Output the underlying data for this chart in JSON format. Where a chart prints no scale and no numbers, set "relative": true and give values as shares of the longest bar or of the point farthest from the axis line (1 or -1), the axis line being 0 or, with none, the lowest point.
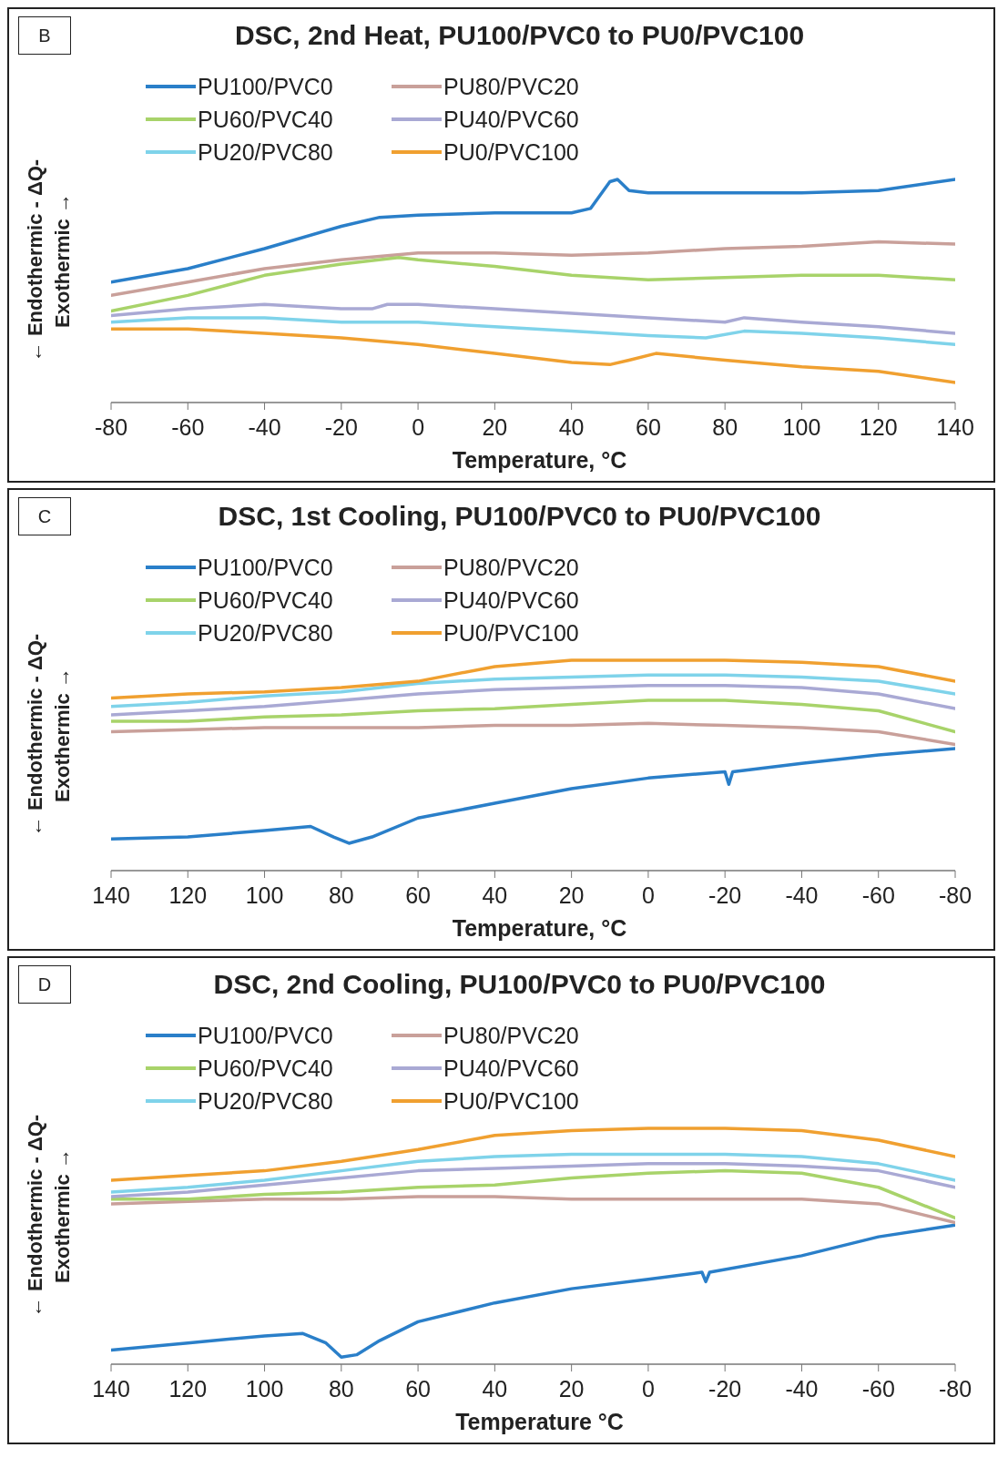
{
  "chart_data": [
    {
      "type": "line",
      "title": "DSC, 2nd Heat, PU100/PVC0 to PU0/PVC100",
      "xlabel": "Temperature, °C",
      "ylabel": "← Endothermic - ΔQ-\nExothermic →",
      "annotations": [
        "B"
      ],
      "relative": true,
      "legend": "top left",
      "xlim": [
        -80,
        140
      ],
      "xticks": [
        -80,
        -60,
        -40,
        -20,
        0,
        20,
        40,
        60,
        80,
        100,
        120,
        140
      ],
      "series": [
        {
          "name": "PU100/PVC0",
          "color": "#2a7fc9",
          "x": [
            -80,
            -60,
            -40,
            -20,
            -10,
            0,
            20,
            40,
            45,
            50,
            52,
            55,
            60,
            80,
            100,
            120,
            140
          ],
          "values": [
            0.54,
            0.6,
            0.69,
            0.79,
            0.83,
            0.84,
            0.85,
            0.85,
            0.87,
            0.99,
            1.0,
            0.95,
            0.94,
            0.94,
            0.94,
            0.95,
            1.0
          ]
        },
        {
          "name": "PU80/PVC20",
          "color": "#c9a09a",
          "x": [
            -80,
            -60,
            -40,
            -20,
            0,
            20,
            40,
            60,
            80,
            100,
            120,
            140
          ],
          "values": [
            0.48,
            0.54,
            0.6,
            0.64,
            0.67,
            0.67,
            0.66,
            0.67,
            0.69,
            0.7,
            0.72,
            0.71
          ]
        },
        {
          "name": "PU60/PVC40",
          "color": "#a8d36a",
          "x": [
            -80,
            -60,
            -40,
            -20,
            -5,
            0,
            20,
            40,
            60,
            80,
            100,
            120,
            140
          ],
          "values": [
            0.41,
            0.48,
            0.57,
            0.62,
            0.65,
            0.64,
            0.61,
            0.57,
            0.55,
            0.56,
            0.57,
            0.57,
            0.55
          ]
        },
        {
          "name": "PU40/PVC60",
          "color": "#a9a9d4",
          "x": [
            -80,
            -60,
            -40,
            -20,
            -12,
            -8,
            0,
            20,
            40,
            60,
            80,
            85,
            100,
            120,
            140
          ],
          "values": [
            0.39,
            0.42,
            0.44,
            0.42,
            0.42,
            0.44,
            0.44,
            0.42,
            0.4,
            0.38,
            0.36,
            0.38,
            0.36,
            0.34,
            0.31
          ]
        },
        {
          "name": "PU20/PVC80",
          "color": "#7fd3ea",
          "x": [
            -80,
            -60,
            -40,
            -20,
            0,
            20,
            40,
            60,
            75,
            85,
            100,
            120,
            140
          ],
          "values": [
            0.36,
            0.38,
            0.38,
            0.36,
            0.36,
            0.34,
            0.32,
            0.3,
            0.29,
            0.32,
            0.31,
            0.29,
            0.26
          ]
        },
        {
          "name": "PU0/PVC100",
          "color": "#f0a030",
          "x": [
            -80,
            -60,
            -40,
            -20,
            0,
            20,
            40,
            50,
            55,
            62,
            80,
            100,
            120,
            140
          ],
          "values": [
            0.33,
            0.33,
            0.31,
            0.29,
            0.26,
            0.22,
            0.18,
            0.17,
            0.19,
            0.22,
            0.19,
            0.16,
            0.14,
            0.09
          ]
        }
      ]
    },
    {
      "type": "line",
      "title": "DSC, 1st Cooling, PU100/PVC0 to PU0/PVC100",
      "xlabel": "Temperature, °C",
      "ylabel": "← Endothermic - ΔQ-\nExothermic →",
      "annotations": [
        "C"
      ],
      "relative": true,
      "legend": "top left",
      "xlim": [
        140,
        -80
      ],
      "xticks": [
        140,
        120,
        100,
        80,
        60,
        40,
        20,
        0,
        -20,
        -40,
        -60,
        -80
      ],
      "x": [
        140,
        120,
        100,
        80,
        60,
        40,
        20,
        0,
        -20,
        -40,
        -60,
        -80
      ],
      "series": [
        {
          "name": "PU100/PVC0",
          "color": "#2a7fc9",
          "x": [
            140,
            120,
            100,
            88,
            82,
            78,
            72,
            60,
            40,
            20,
            0,
            -20,
            -21,
            -22,
            -40,
            -60,
            -80
          ],
          "values": [
            0.15,
            0.16,
            0.19,
            0.21,
            0.16,
            0.13,
            0.16,
            0.25,
            0.32,
            0.39,
            0.44,
            0.47,
            0.41,
            0.47,
            0.51,
            0.55,
            0.58
          ]
        },
        {
          "name": "PU80/PVC20",
          "color": "#c9a09a",
          "values": [
            0.66,
            0.67,
            0.68,
            0.68,
            0.68,
            0.69,
            0.69,
            0.7,
            0.69,
            0.68,
            0.66,
            0.6
          ]
        },
        {
          "name": "PU60/PVC40",
          "color": "#a8d36a",
          "values": [
            0.71,
            0.71,
            0.73,
            0.74,
            0.76,
            0.77,
            0.79,
            0.81,
            0.81,
            0.79,
            0.76,
            0.66
          ]
        },
        {
          "name": "PU40/PVC60",
          "color": "#a9a9d4",
          "values": [
            0.74,
            0.76,
            0.78,
            0.81,
            0.84,
            0.86,
            0.87,
            0.88,
            0.88,
            0.87,
            0.84,
            0.77
          ]
        },
        {
          "name": "PU20/PVC80",
          "color": "#7fd3ea",
          "values": [
            0.78,
            0.8,
            0.83,
            0.85,
            0.89,
            0.91,
            0.92,
            0.93,
            0.93,
            0.92,
            0.9,
            0.84
          ]
        },
        {
          "name": "PU0/PVC100",
          "color": "#f0a030",
          "values": [
            0.82,
            0.84,
            0.85,
            0.87,
            0.9,
            0.97,
            1.0,
            1.0,
            1.0,
            0.99,
            0.97,
            0.9
          ]
        }
      ]
    },
    {
      "type": "line",
      "title": "DSC, 2nd Cooling, PU100/PVC0 to PU0/PVC100",
      "xlabel": "Temperature °C",
      "ylabel": "← Endothermic - ΔQ-\nExothermic →",
      "annotations": [
        "D"
      ],
      "relative": true,
      "legend": "top left",
      "xlim": [
        140,
        -80
      ],
      "xticks": [
        140,
        120,
        100,
        80,
        60,
        40,
        20,
        0,
        -20,
        -40,
        -60,
        -80
      ],
      "x": [
        140,
        120,
        100,
        80,
        60,
        40,
        20,
        0,
        -20,
        -40,
        -60,
        -80
      ],
      "series": [
        {
          "name": "PU100/PVC0",
          "color": "#2a7fc9",
          "x": [
            140,
            120,
            100,
            90,
            84,
            80,
            76,
            70,
            60,
            40,
            20,
            0,
            -14,
            -15,
            -16,
            -40,
            -60,
            -80
          ],
          "values": [
            0.06,
            0.09,
            0.12,
            0.13,
            0.09,
            0.03,
            0.04,
            0.1,
            0.18,
            0.26,
            0.32,
            0.36,
            0.39,
            0.35,
            0.39,
            0.46,
            0.54,
            0.59
          ]
        },
        {
          "name": "PU80/PVC20",
          "color": "#c9a09a",
          "values": [
            0.68,
            0.69,
            0.7,
            0.7,
            0.71,
            0.71,
            0.7,
            0.7,
            0.7,
            0.7,
            0.68,
            0.6
          ]
        },
        {
          "name": "PU60/PVC40",
          "color": "#a8d36a",
          "values": [
            0.7,
            0.7,
            0.72,
            0.73,
            0.75,
            0.76,
            0.79,
            0.81,
            0.82,
            0.81,
            0.75,
            0.62
          ]
        },
        {
          "name": "PU40/PVC60",
          "color": "#a9a9d4",
          "values": [
            0.71,
            0.73,
            0.76,
            0.79,
            0.82,
            0.83,
            0.84,
            0.85,
            0.85,
            0.84,
            0.82,
            0.75
          ]
        },
        {
          "name": "PU20/PVC80",
          "color": "#7fd3ea",
          "values": [
            0.73,
            0.75,
            0.78,
            0.82,
            0.86,
            0.88,
            0.89,
            0.89,
            0.89,
            0.88,
            0.85,
            0.78
          ]
        },
        {
          "name": "PU0/PVC100",
          "color": "#f0a030",
          "values": [
            0.78,
            0.8,
            0.82,
            0.86,
            0.91,
            0.97,
            0.99,
            1.0,
            1.0,
            0.99,
            0.95,
            0.88
          ]
        }
      ]
    }
  ]
}
